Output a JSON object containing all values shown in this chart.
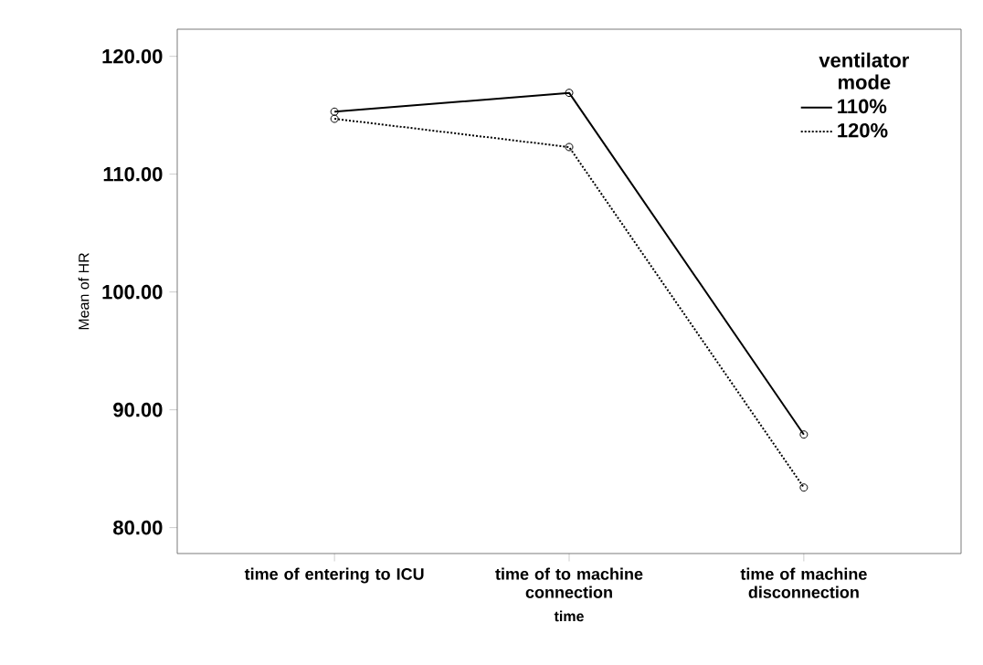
{
  "chart_data": {
    "type": "line",
    "xlabel": "time",
    "ylabel": "Mean of HR",
    "legend_title": "ventilator mode",
    "categories": [
      "time of entering to ICU",
      "time of to machine connection",
      "time of machine disconnection"
    ],
    "series": [
      {
        "name": "110%",
        "color": "#000000",
        "line_style": "solid",
        "values": [
          115.3,
          116.9,
          87.9
        ]
      },
      {
        "name": "120%",
        "color": "#000000",
        "line_style": "dotted",
        "values": [
          114.7,
          112.3,
          83.4
        ]
      }
    ],
    "ylim": [
      77.8,
      122.3
    ],
    "yticks": [
      {
        "value": 80,
        "label": "80.00"
      },
      {
        "value": 90,
        "label": "90.00"
      },
      {
        "value": 100,
        "label": "100.00"
      },
      {
        "value": 110,
        "label": "110.00"
      },
      {
        "value": 120,
        "label": "120.00"
      }
    ],
    "grid": false,
    "legend": "top right",
    "marker": "circle"
  }
}
